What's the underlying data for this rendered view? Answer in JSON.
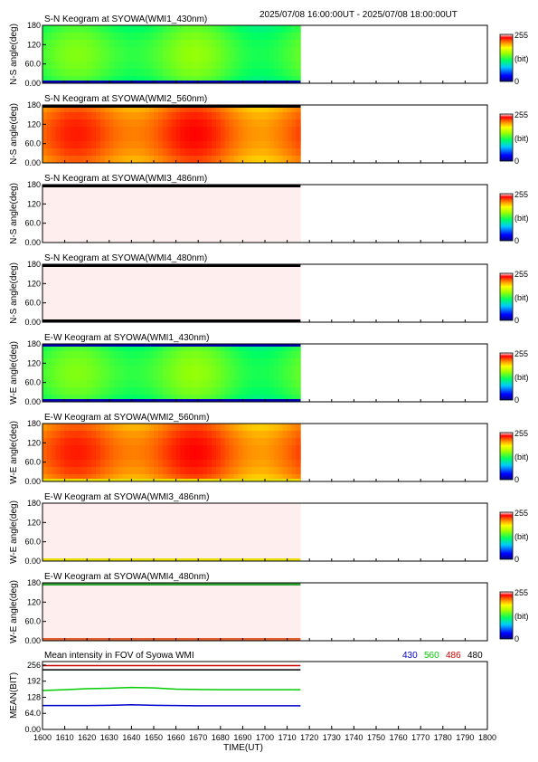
{
  "header": {
    "time_range": "2025/07/08 16:00:00UT - 2025/07/08 18:00:00UT"
  },
  "colorbar": {
    "max_label": "255",
    "unit": "(bit)",
    "min_label": "0"
  },
  "chart_data": [
    {
      "type": "heatmap",
      "title": "S-N Keogram at SYOWA(WMI1_430nm)",
      "ylabel": "N-S angle(deg)",
      "yticks": [
        "0.00",
        "60.0",
        "120",
        "180"
      ],
      "ylim": [
        0,
        180
      ],
      "xlim": [
        1600,
        1800
      ],
      "data_end": 1716,
      "level": 0.52,
      "top_band": "none",
      "bottom_band": "blue"
    },
    {
      "type": "heatmap",
      "title": "S-N Keogram at SYOWA(WMI2_560nm)",
      "ylabel": "N-S angle(deg)",
      "yticks": [
        "0.00",
        "60.0",
        "120",
        "180"
      ],
      "ylim": [
        0,
        180
      ],
      "xlim": [
        1600,
        1800
      ],
      "data_end": 1716,
      "level": 0.86,
      "top_band": "black",
      "bottom_band": "none"
    },
    {
      "type": "heatmap",
      "title": "S-N Keogram at SYOWA(WMI3_486nm)",
      "ylabel": "N-S angle(deg)",
      "yticks": [
        "0.00",
        "60.0",
        "120",
        "180"
      ],
      "ylim": [
        0,
        180
      ],
      "xlim": [
        1600,
        1800
      ],
      "data_end": 1716,
      "level": 1.0,
      "top_band": "black",
      "bottom_band": "none"
    },
    {
      "type": "heatmap",
      "title": "S-N Keogram at SYOWA(WMI4_480nm)",
      "ylabel": "N-S angle(deg)",
      "yticks": [
        "0.00",
        "60.0",
        "120",
        "180"
      ],
      "ylim": [
        0,
        180
      ],
      "xlim": [
        1600,
        1800
      ],
      "data_end": 1716,
      "level": 1.0,
      "top_band": "black",
      "bottom_band": "black"
    },
    {
      "type": "heatmap",
      "title": "E-W Keogram at SYOWA(WMI1_430nm)",
      "ylabel": "W-E angle(deg)",
      "yticks": [
        "0.00",
        "60.0",
        "120",
        "180"
      ],
      "ylim": [
        0,
        180
      ],
      "xlim": [
        1600,
        1800
      ],
      "data_end": 1716,
      "level": 0.52,
      "top_band": "blue",
      "bottom_band": "blue"
    },
    {
      "type": "heatmap",
      "title": "E-W Keogram at SYOWA(WMI2_560nm)",
      "ylabel": "W-E angle(deg)",
      "yticks": [
        "0.00",
        "60.0",
        "120",
        "180"
      ],
      "ylim": [
        0,
        180
      ],
      "xlim": [
        1600,
        1800
      ],
      "data_end": 1716,
      "level": 0.86,
      "top_band": "none",
      "bottom_band": "yellow"
    },
    {
      "type": "heatmap",
      "title": "E-W Keogram at SYOWA(WMI3_486nm)",
      "ylabel": "W-E angle(deg)",
      "yticks": [
        "0.00",
        "60.0",
        "120",
        "180"
      ],
      "ylim": [
        0,
        180
      ],
      "xlim": [
        1600,
        1800
      ],
      "data_end": 1716,
      "level": 1.0,
      "top_band": "none",
      "bottom_band": "yellow"
    },
    {
      "type": "heatmap",
      "title": "E-W Keogram at SYOWA(WMI4_480nm)",
      "ylabel": "W-E angle(deg)",
      "yticks": [
        "0.00",
        "60.0",
        "120",
        "180"
      ],
      "ylim": [
        0,
        180
      ],
      "xlim": [
        1600,
        1800
      ],
      "data_end": 1716,
      "level": 1.0,
      "top_band": "green",
      "bottom_band": "orange"
    },
    {
      "type": "line",
      "title": "Mean intensity in FOV of Syowa WMI",
      "ylabel": "MEAN(BIT)",
      "xlabel": "TIME(UT)",
      "xlim": [
        1600,
        1800
      ],
      "ylim": [
        0,
        270
      ],
      "yticks": [
        "0.00",
        "64.0",
        "128",
        "192",
        "256"
      ],
      "xticks": [
        "1600",
        "1610",
        "1620",
        "1630",
        "1640",
        "1650",
        "1660",
        "1670",
        "1680",
        "1690",
        "1700",
        "1710",
        "1720",
        "1730",
        "1740",
        "1750",
        "1760",
        "1770",
        "1780",
        "1790",
        "1800"
      ],
      "series": [
        {
          "name": "430",
          "color": "#0000cc",
          "x": [
            1600,
            1610,
            1620,
            1630,
            1640,
            1650,
            1660,
            1670,
            1680,
            1690,
            1700,
            1710,
            1716
          ],
          "y": [
            95,
            95,
            95,
            96,
            98,
            96,
            95,
            94,
            94,
            94,
            94,
            94,
            94
          ]
        },
        {
          "name": "560",
          "color": "#00cc00",
          "x": [
            1600,
            1610,
            1620,
            1630,
            1640,
            1650,
            1660,
            1670,
            1680,
            1690,
            1700,
            1710,
            1716
          ],
          "y": [
            155,
            158,
            162,
            164,
            167,
            165,
            160,
            159,
            158,
            158,
            158,
            158,
            158
          ]
        },
        {
          "name": "486",
          "color": "#cc0000",
          "x": [
            1600,
            1610,
            1620,
            1630,
            1640,
            1650,
            1660,
            1670,
            1680,
            1690,
            1700,
            1710,
            1716
          ],
          "y": [
            254,
            254,
            254,
            254,
            254,
            254,
            254,
            254,
            254,
            254,
            254,
            254,
            254
          ]
        },
        {
          "name": "480",
          "color": "#000000",
          "x": [
            1600,
            1610,
            1620,
            1630,
            1640,
            1650,
            1660,
            1670,
            1680,
            1690,
            1700,
            1710,
            1716
          ],
          "y": [
            237,
            237,
            237,
            237,
            237,
            237,
            237,
            237,
            237,
            237,
            237,
            237,
            237
          ]
        }
      ]
    }
  ]
}
